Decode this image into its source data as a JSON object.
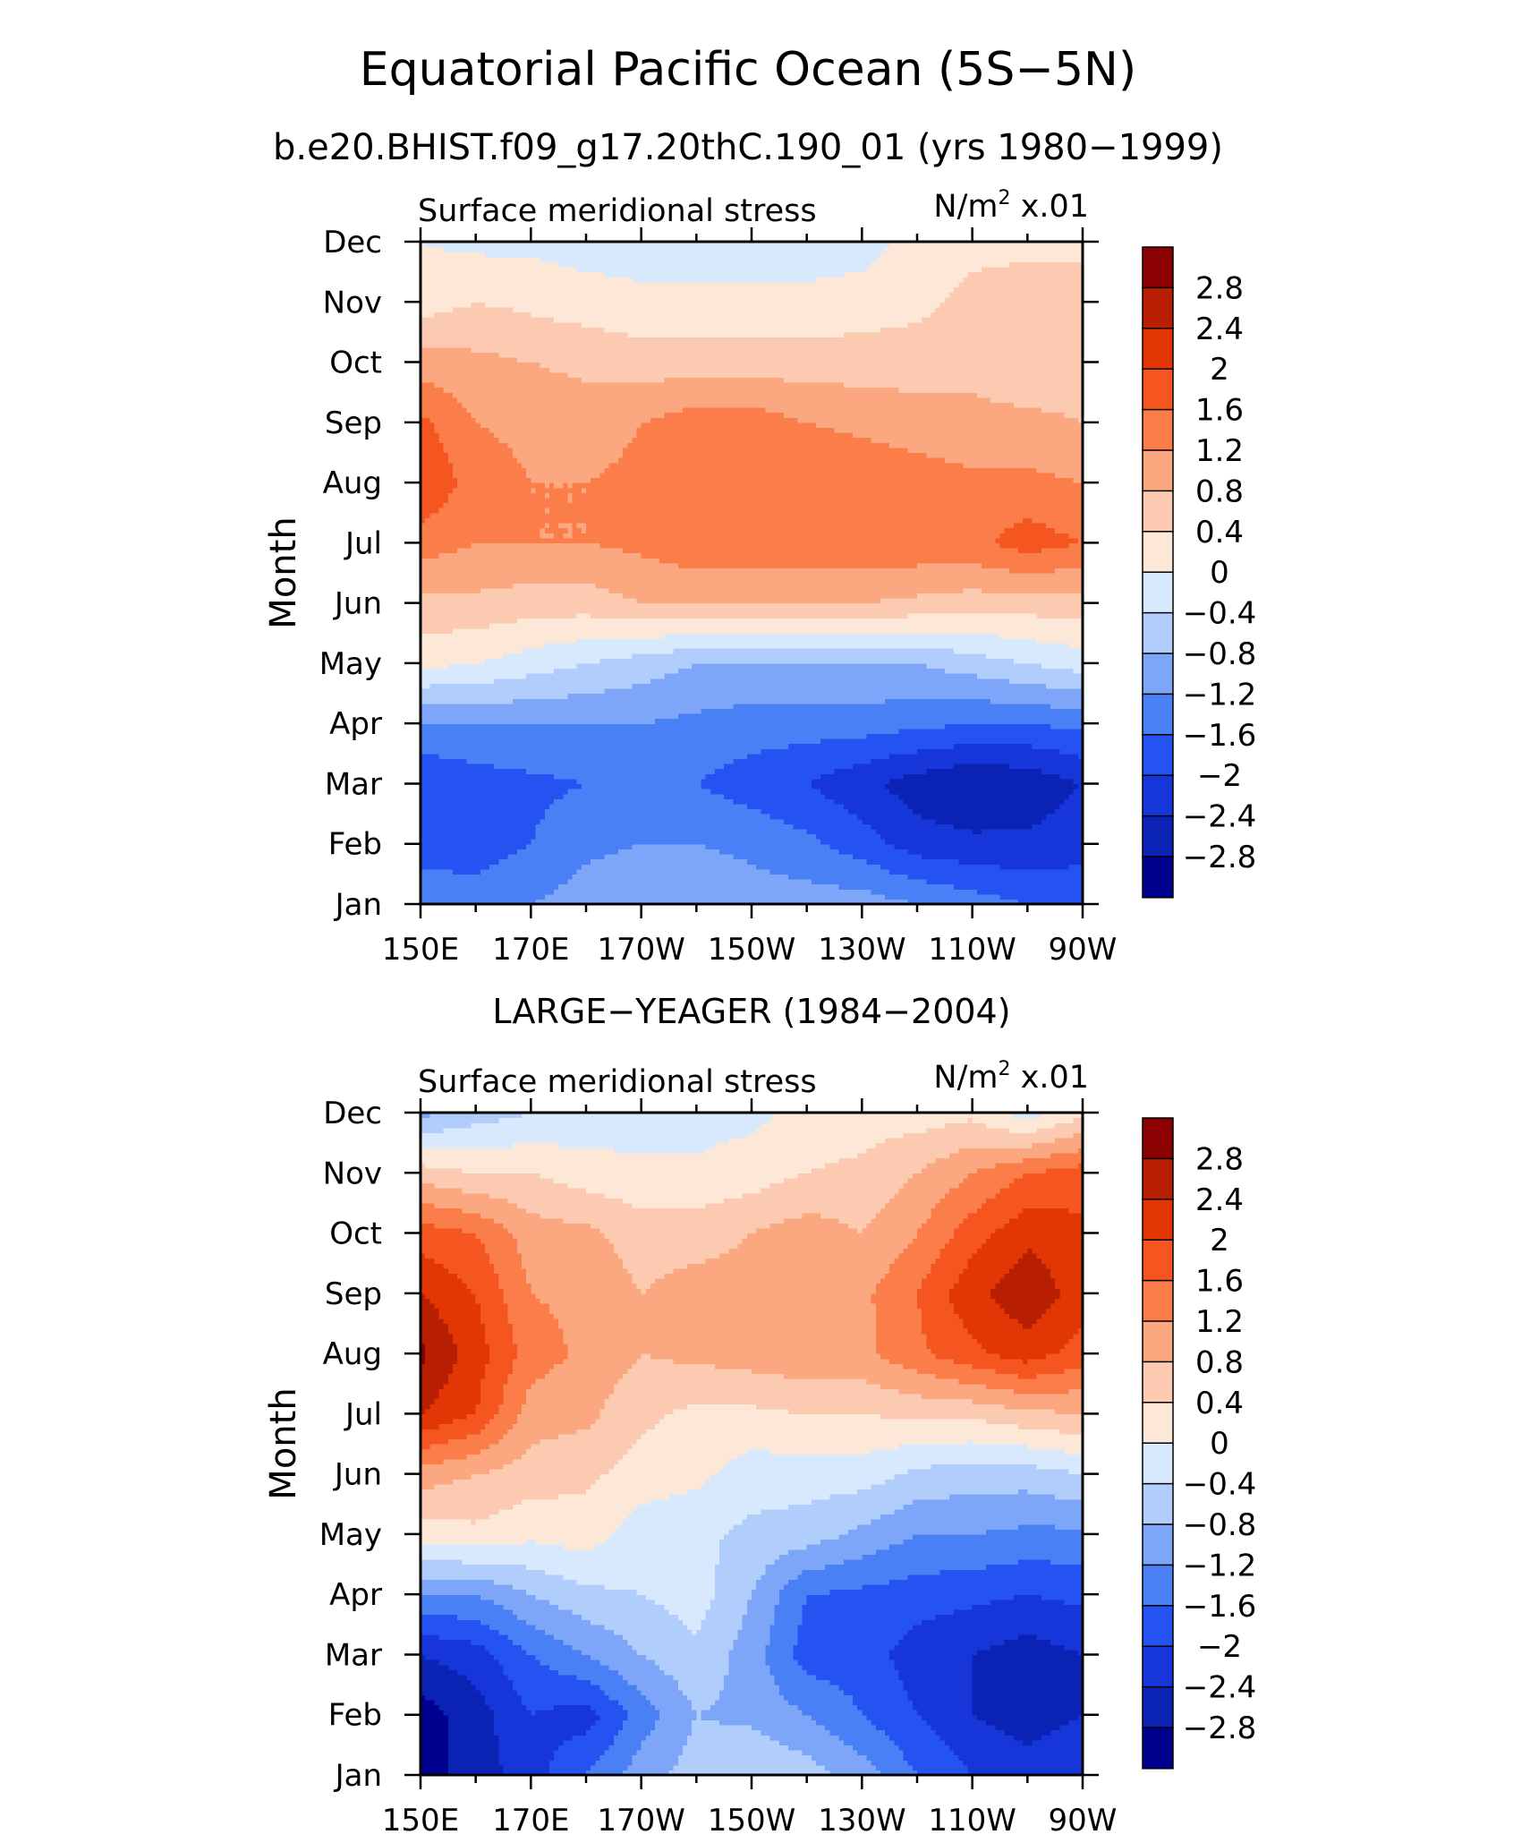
{
  "title": "Equatorial Pacific Ocean (5S−5N)",
  "subtitle": "b.e20.BHIST.f09_g17.20thC.190_01 (yrs 1980−1999)",
  "chart_data": [
    {
      "type": "heatmap",
      "panel_title": "",
      "left_label": "Surface meridional stress",
      "right_label_base": "N/m",
      "right_label_exp": "2",
      "right_label_scale": "x.01",
      "ylabel": "Month",
      "x_ticks": [
        "150E",
        "170E",
        "170W",
        "150W",
        "130W",
        "110W",
        "90W"
      ],
      "x_tick_lon": [
        150,
        170,
        190,
        210,
        230,
        250,
        270
      ],
      "xlim": [
        150,
        270
      ],
      "y_ticks": [
        "Jan",
        "Feb",
        "Mar",
        "Apr",
        "May",
        "Jun",
        "Jul",
        "Aug",
        "Sep",
        "Oct",
        "Nov",
        "Dec"
      ],
      "ylim": [
        1,
        12
      ],
      "grid_lon": [
        150,
        160,
        170,
        180,
        190,
        200,
        210,
        220,
        230,
        240,
        250,
        260,
        270
      ],
      "grid_month": [
        1,
        2,
        3,
        4,
        5,
        6,
        7,
        8,
        9,
        10,
        11,
        12
      ],
      "values": [
        [
          -1.2,
          -1.4,
          -1.2,
          -1.0,
          -0.8,
          -0.8,
          -1.0,
          -1.0,
          -1.0,
          -1.2,
          -1.4,
          -1.6,
          -1.8
        ],
        [
          -1.9,
          -1.8,
          -1.6,
          -1.3,
          -1.2,
          -1.2,
          -1.3,
          -1.5,
          -1.8,
          -2.2,
          -2.3,
          -2.3,
          -2.1
        ],
        [
          -2.0,
          -1.8,
          -1.7,
          -1.6,
          -1.4,
          -1.6,
          -1.8,
          -2.0,
          -2.3,
          -2.6,
          -2.8,
          -2.7,
          -2.4
        ],
        [
          -1.2,
          -1.2,
          -1.2,
          -1.2,
          -1.2,
          -1.3,
          -1.4,
          -1.4,
          -1.4,
          -1.5,
          -1.6,
          -1.6,
          -1.5
        ],
        [
          0.1,
          0.0,
          -0.2,
          -0.4,
          -0.6,
          -0.8,
          -0.8,
          -0.8,
          -0.8,
          -0.8,
          -0.6,
          -0.4,
          -0.2
        ],
        [
          0.7,
          0.7,
          0.6,
          0.6,
          0.8,
          0.8,
          0.8,
          0.8,
          0.8,
          0.7,
          0.6,
          0.6,
          0.6
        ],
        [
          1.4,
          1.2,
          1.2,
          1.2,
          1.3,
          1.5,
          1.5,
          1.5,
          1.5,
          1.5,
          1.5,
          1.8,
          1.6
        ],
        [
          2.0,
          1.4,
          1.2,
          1.2,
          1.3,
          1.5,
          1.6,
          1.6,
          1.5,
          1.4,
          1.3,
          1.3,
          1.2
        ],
        [
          1.7,
          1.2,
          1.1,
          1.0,
          1.2,
          1.4,
          1.4,
          1.2,
          1.1,
          1.0,
          0.9,
          0.9,
          0.8
        ],
        [
          1.0,
          0.9,
          0.8,
          0.7,
          0.6,
          0.6,
          0.6,
          0.6,
          0.6,
          0.6,
          0.7,
          0.5,
          0.6
        ],
        [
          0.2,
          0.4,
          0.3,
          0.2,
          0.1,
          0.1,
          0.1,
          0.1,
          0.2,
          0.3,
          0.5,
          0.6,
          0.6
        ],
        [
          0.0,
          -0.1,
          -0.1,
          -0.2,
          -0.2,
          -0.2,
          -0.2,
          -0.2,
          -0.2,
          0.2,
          0.3,
          0.3,
          0.3
        ]
      ],
      "levels": [
        -2.8,
        -2.4,
        -2.0,
        -1.6,
        -1.2,
        -0.8,
        -0.4,
        0,
        0.4,
        0.8,
        1.2,
        1.6,
        2.0,
        2.4,
        2.8
      ],
      "colorbar_labels": [
        "2.8",
        "2.4",
        "2",
        "1.6",
        "1.2",
        "0.8",
        "0.4",
        "0",
        "−0.4",
        "−0.8",
        "−1.2",
        "−1.6",
        "−2",
        "−2.4",
        "−2.8"
      ],
      "colors": [
        "#00008f",
        "#0b23b5",
        "#1736d9",
        "#2453f2",
        "#4a80f5",
        "#7ea6f8",
        "#b1cdfb",
        "#d9e9fd",
        "#fde8d8",
        "#fccab0",
        "#fba880",
        "#fa7d4a",
        "#f5551f",
        "#e23705",
        "#b81e02",
        "#8b0000"
      ]
    },
    {
      "type": "heatmap",
      "panel_title": "LARGE−YEAGER (1984−2004)",
      "left_label": "Surface meridional stress",
      "right_label_base": "N/m",
      "right_label_exp": "2",
      "right_label_scale": "x.01",
      "ylabel": "Month",
      "x_ticks": [
        "150E",
        "170E",
        "170W",
        "150W",
        "130W",
        "110W",
        "90W"
      ],
      "x_tick_lon": [
        150,
        170,
        190,
        210,
        230,
        250,
        270
      ],
      "xlim": [
        150,
        270
      ],
      "y_ticks": [
        "Jan",
        "Feb",
        "Mar",
        "Apr",
        "May",
        "Jun",
        "Jul",
        "Aug",
        "Sep",
        "Oct",
        "Nov",
        "Dec"
      ],
      "ylim": [
        1,
        12
      ],
      "grid_lon": [
        150,
        160,
        170,
        180,
        190,
        200,
        210,
        220,
        230,
        240,
        250,
        260,
        270
      ],
      "grid_month": [
        1,
        2,
        3,
        4,
        5,
        6,
        7,
        8,
        9,
        10,
        11,
        12
      ],
      "values": [
        [
          -3.0,
          -2.6,
          -2.2,
          -1.6,
          -1.0,
          -0.6,
          -0.4,
          -0.6,
          -1.0,
          -1.6,
          -2.0,
          -2.2,
          -2.0
        ],
        [
          -3.0,
          -2.6,
          -2.0,
          -2.2,
          -1.4,
          -0.8,
          -0.9,
          -1.2,
          -1.6,
          -2.0,
          -2.4,
          -2.6,
          -2.4
        ],
        [
          -2.4,
          -2.2,
          -1.6,
          -1.2,
          -0.8,
          -0.5,
          -1.0,
          -1.8,
          -1.8,
          -2.2,
          -2.4,
          -2.6,
          -2.4
        ],
        [
          -1.2,
          -1.2,
          -0.8,
          -0.5,
          -0.4,
          -0.2,
          -0.8,
          -1.6,
          -1.7,
          -1.8,
          -1.9,
          -2.0,
          -1.9
        ],
        [
          0.2,
          0.3,
          0.1,
          0.2,
          -0.2,
          -0.3,
          -0.5,
          -0.6,
          -0.9,
          -1.2,
          -1.2,
          -1.3,
          -1.3
        ],
        [
          1.0,
          0.8,
          0.6,
          0.5,
          0.2,
          0.1,
          -0.2,
          -0.2,
          -0.2,
          -0.5,
          -0.6,
          -0.6,
          -0.4
        ],
        [
          2.4,
          2.0,
          1.0,
          0.9,
          0.5,
          0.3,
          0.3,
          0.4,
          0.4,
          0.5,
          0.5,
          0.7,
          0.8
        ],
        [
          2.9,
          2.2,
          1.4,
          1.1,
          0.8,
          0.9,
          1.0,
          1.1,
          1.1,
          1.5,
          1.9,
          2.2,
          1.8
        ],
        [
          2.4,
          2.0,
          1.2,
          1.1,
          0.8,
          1.0,
          1.0,
          1.1,
          1.1,
          1.6,
          2.3,
          2.7,
          2.2
        ],
        [
          1.8,
          1.6,
          1.0,
          0.9,
          0.6,
          0.6,
          0.8,
          1.0,
          0.8,
          1.2,
          1.8,
          2.3,
          2.1
        ],
        [
          0.6,
          0.4,
          0.4,
          0.2,
          0.1,
          0.1,
          0.2,
          0.4,
          0.5,
          0.8,
          1.2,
          1.6,
          1.8
        ],
        [
          -0.9,
          -0.6,
          -0.4,
          -0.3,
          -0.2,
          -0.2,
          -0.1,
          0.1,
          0.2,
          0.2,
          0.3,
          -0.2,
          0.3
        ]
      ],
      "levels": [
        -2.8,
        -2.4,
        -2.0,
        -1.6,
        -1.2,
        -0.8,
        -0.4,
        0,
        0.4,
        0.8,
        1.2,
        1.6,
        2.0,
        2.4,
        2.8
      ],
      "colorbar_labels": [
        "2.8",
        "2.4",
        "2",
        "1.6",
        "1.2",
        "0.8",
        "0.4",
        "0",
        "−0.4",
        "−0.8",
        "−1.2",
        "−1.6",
        "−2",
        "−2.4",
        "−2.8"
      ],
      "colors": [
        "#00008f",
        "#0b23b5",
        "#1736d9",
        "#2453f2",
        "#4a80f5",
        "#7ea6f8",
        "#b1cdfb",
        "#d9e9fd",
        "#fde8d8",
        "#fccab0",
        "#fba880",
        "#fa7d4a",
        "#f5551f",
        "#e23705",
        "#b81e02",
        "#8b0000"
      ]
    }
  ]
}
